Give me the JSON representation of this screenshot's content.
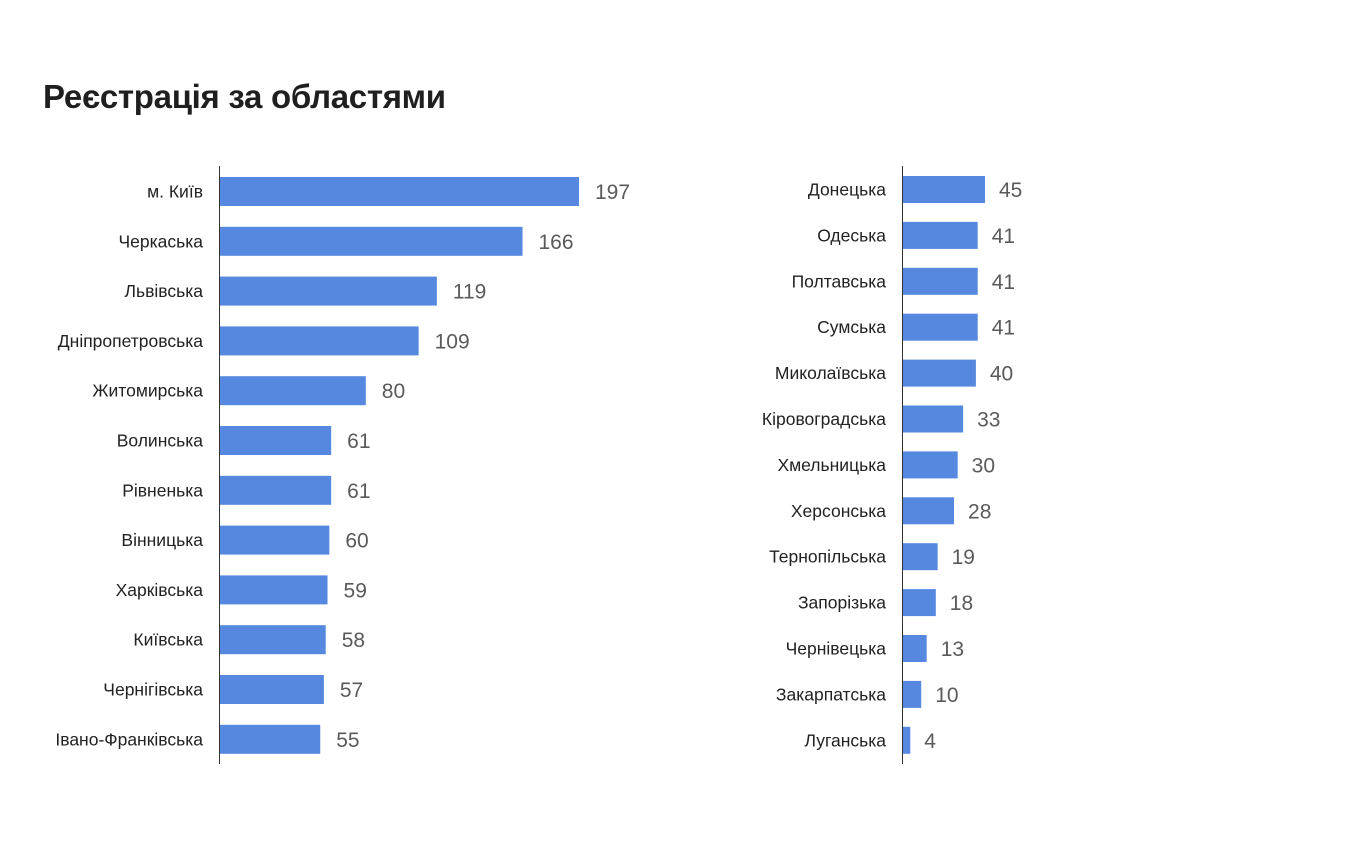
{
  "title": "Реєстрація за областями",
  "colors": {
    "bar": "#5588DE",
    "value_text": "#5a5a5a",
    "label_text": "#222222",
    "title_text": "#1f1f1f"
  },
  "chart_data": [
    {
      "type": "bar",
      "orientation": "horizontal",
      "categories": [
        "м. Київ",
        "Черкаська",
        "Львівська",
        "Дніпропетровська",
        "Житомирська",
        "Волинська",
        "Рівненька",
        "Вінницька",
        "Харківська",
        "Київська",
        "Чернігівська",
        "Івано-Франківська"
      ],
      "values": [
        197,
        166,
        119,
        109,
        80,
        61,
        61,
        60,
        59,
        58,
        57,
        55
      ],
      "data_labels": true,
      "xlim": [
        0,
        197
      ],
      "grid": false,
      "legend": "none"
    },
    {
      "type": "bar",
      "orientation": "horizontal",
      "categories": [
        "Донецька",
        "Одеська",
        "Полтавська",
        "Сумська",
        "Миколаївська",
        "Кіровоградська",
        "Хмельницька",
        "Херсонська",
        "Тернопільська",
        "Запорізька",
        "Чернівецька",
        "Закарпатська",
        "Луганська"
      ],
      "values": [
        45,
        41,
        41,
        41,
        40,
        33,
        30,
        28,
        19,
        18,
        13,
        10,
        4
      ],
      "data_labels": true,
      "xlim": [
        0,
        45
      ],
      "grid": false,
      "legend": "none"
    }
  ]
}
